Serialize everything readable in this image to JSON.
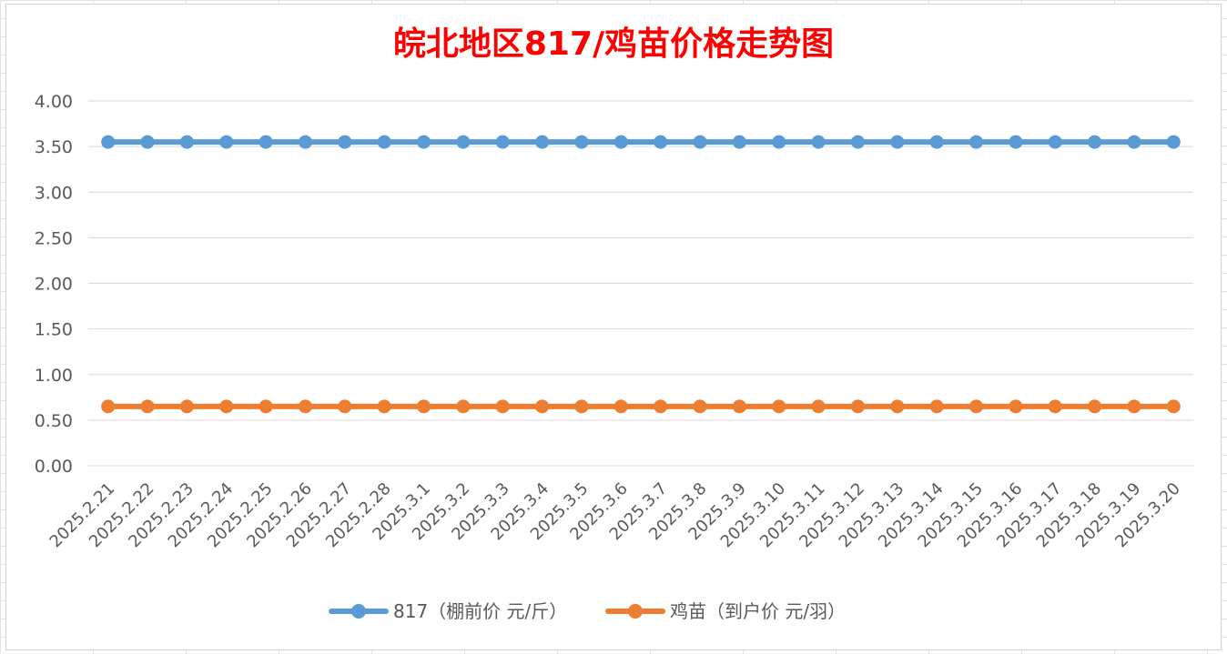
{
  "chart_data": {
    "type": "line",
    "title": "皖北地区817/鸡苗价格走势图",
    "xlabel": "",
    "ylabel": "",
    "ylim": [
      0,
      4
    ],
    "y_ticks": [
      "0.00",
      "0.50",
      "1.00",
      "1.50",
      "2.00",
      "2.50",
      "3.00",
      "3.50",
      "4.00"
    ],
    "grid": true,
    "legend_position": "bottom",
    "categories": [
      "2025.2.21",
      "2025.2.22",
      "2025.2.23",
      "2025.2.24",
      "2025.2.25",
      "2025.2.26",
      "2025.2.27",
      "2025.2.28",
      "2025.3.1",
      "2025.3.2",
      "2025.3.3",
      "2025.3.4",
      "2025.3.5",
      "2025.3.6",
      "2025.3.7",
      "2025.3.8",
      "2025.3.9",
      "2025.3.10",
      "2025.3.11",
      "2025.3.12",
      "2025.3.13",
      "2025.3.14",
      "2025.3.15",
      "2025.3.16",
      "2025.3.17",
      "2025.3.18",
      "2025.3.19",
      "2025.3.20"
    ],
    "series": [
      {
        "name": "817（棚前价 元/斤）",
        "color": "#5b9bd5",
        "values": [
          3.55,
          3.55,
          3.55,
          3.55,
          3.55,
          3.55,
          3.55,
          3.55,
          3.55,
          3.55,
          3.55,
          3.55,
          3.55,
          3.55,
          3.55,
          3.55,
          3.55,
          3.55,
          3.55,
          3.55,
          3.55,
          3.55,
          3.55,
          3.55,
          3.55,
          3.55,
          3.55,
          3.55
        ]
      },
      {
        "name": "鸡苗（到户价 元/羽）",
        "color": "#ed7d31",
        "values": [
          0.65,
          0.65,
          0.65,
          0.65,
          0.65,
          0.65,
          0.65,
          0.65,
          0.65,
          0.65,
          0.65,
          0.65,
          0.65,
          0.65,
          0.65,
          0.65,
          0.65,
          0.65,
          0.65,
          0.65,
          0.65,
          0.65,
          0.65,
          0.65,
          0.65,
          0.65,
          0.65,
          0.65
        ]
      }
    ]
  }
}
